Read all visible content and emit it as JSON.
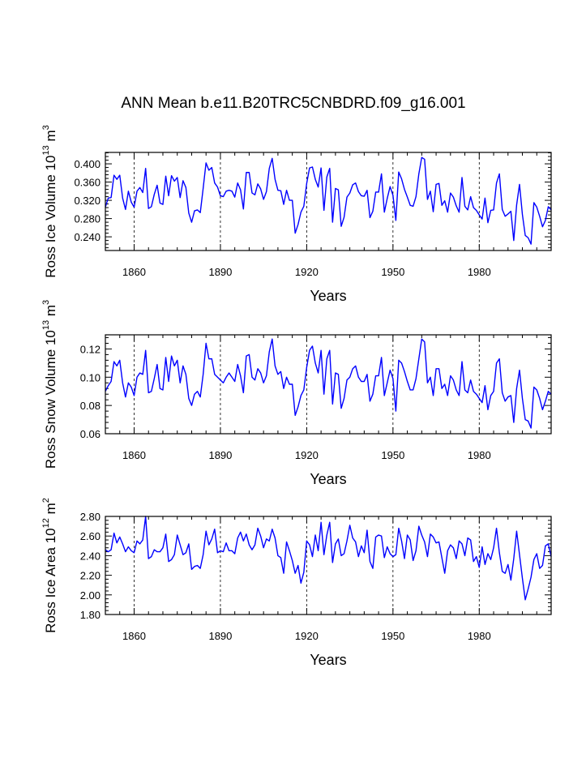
{
  "figure": {
    "title": "ANN Mean b.e11.B20TRC5CNBDRD.f09_g16.001",
    "line_color": "#0000ff",
    "grid_color": "#000000"
  },
  "chart_data": [
    {
      "type": "line",
      "ylabel": {
        "main": "Ross Ice Volume 10",
        "exp": "13",
        "unit": " m",
        "unit_exp": "3"
      },
      "xlabel": "Years",
      "xlim": [
        1850,
        2005
      ],
      "ylim": [
        0.21,
        0.425
      ],
      "x_ticks": [
        1860,
        1890,
        1920,
        1950,
        1980
      ],
      "x_tick_labels": [
        "1860",
        "1890",
        "1920",
        "1950",
        "1980"
      ],
      "y_ticks": [
        0.24,
        0.28,
        0.32,
        0.36,
        0.4
      ],
      "y_tick_labels": [
        "0.240",
        "0.280",
        "0.320",
        "0.360",
        "0.400"
      ],
      "grid": "vertical dashed at x ticks",
      "series": [
        {
          "name": "Ross Ice Volume",
          "x": [
            1850,
            1851,
            1852,
            1853,
            1854,
            1855,
            1856,
            1857,
            1858,
            1859,
            1860,
            1861,
            1862,
            1863,
            1864,
            1865,
            1866,
            1867,
            1868,
            1869,
            1870,
            1871,
            1872,
            1873,
            1874,
            1875,
            1876,
            1877,
            1878,
            1879,
            1880,
            1881,
            1882,
            1883,
            1884,
            1885,
            1886,
            1887,
            1888,
            1889,
            1890,
            1891,
            1892,
            1893,
            1894,
            1895,
            1896,
            1897,
            1898,
            1899,
            1900,
            1901,
            1902,
            1903,
            1904,
            1905,
            1906,
            1907,
            1908,
            1909,
            1910,
            1911,
            1912,
            1913,
            1914,
            1915,
            1916,
            1917,
            1918,
            1919,
            1920,
            1921,
            1922,
            1923,
            1924,
            1925,
            1926,
            1927,
            1928,
            1929,
            1930,
            1931,
            1932,
            1933,
            1934,
            1935,
            1936,
            1937,
            1938,
            1939,
            1940,
            1941,
            1942,
            1943,
            1944,
            1945,
            1946,
            1947,
            1948,
            1949,
            1950,
            1951,
            1952,
            1953,
            1954,
            1955,
            1956,
            1957,
            1958,
            1959,
            1960,
            1961,
            1962,
            1963,
            1964,
            1965,
            1966,
            1967,
            1968,
            1969,
            1970,
            1971,
            1972,
            1973,
            1974,
            1975,
            1976,
            1977,
            1978,
            1979,
            1980,
            1981,
            1982,
            1983,
            1984,
            1985,
            1986,
            1987,
            1988,
            1989,
            1990,
            1991,
            1992,
            1993,
            1994,
            1995,
            1996,
            1997,
            1998,
            1999,
            2000,
            2001,
            2002,
            2003,
            2004,
            2005
          ],
          "values": [
            0.305,
            0.325,
            0.326,
            0.375,
            0.366,
            0.375,
            0.325,
            0.3,
            0.34,
            0.316,
            0.305,
            0.34,
            0.348,
            0.337,
            0.39,
            0.302,
            0.306,
            0.333,
            0.353,
            0.314,
            0.311,
            0.373,
            0.33,
            0.374,
            0.362,
            0.37,
            0.326,
            0.363,
            0.348,
            0.292,
            0.272,
            0.297,
            0.299,
            0.293,
            0.346,
            0.402,
            0.386,
            0.392,
            0.358,
            0.349,
            0.33,
            0.328,
            0.34,
            0.342,
            0.34,
            0.327,
            0.358,
            0.343,
            0.301,
            0.381,
            0.381,
            0.336,
            0.332,
            0.356,
            0.345,
            0.322,
            0.339,
            0.39,
            0.412,
            0.366,
            0.342,
            0.341,
            0.311,
            0.342,
            0.32,
            0.32,
            0.248,
            0.267,
            0.294,
            0.307,
            0.357,
            0.391,
            0.393,
            0.366,
            0.349,
            0.391,
            0.298,
            0.371,
            0.39,
            0.272,
            0.346,
            0.343,
            0.263,
            0.283,
            0.327,
            0.336,
            0.354,
            0.358,
            0.339,
            0.33,
            0.329,
            0.342,
            0.282,
            0.296,
            0.338,
            0.338,
            0.378,
            0.294,
            0.324,
            0.35,
            0.331,
            0.276,
            0.382,
            0.367,
            0.344,
            0.327,
            0.309,
            0.307,
            0.328,
            0.378,
            0.414,
            0.41,
            0.322,
            0.34,
            0.295,
            0.355,
            0.357,
            0.309,
            0.319,
            0.294,
            0.336,
            0.327,
            0.308,
            0.294,
            0.37,
            0.307,
            0.299,
            0.328,
            0.304,
            0.298,
            0.288,
            0.279,
            0.325,
            0.271,
            0.298,
            0.299,
            0.358,
            0.378,
            0.3,
            0.285,
            0.29,
            0.296,
            0.232,
            0.31,
            0.355,
            0.289,
            0.243,
            0.238,
            0.224,
            0.315,
            0.305,
            0.285,
            0.262,
            0.276,
            0.306,
            0.299
          ]
        }
      ]
    },
    {
      "type": "line",
      "ylabel": {
        "main": "Ross Snow Volume 10",
        "exp": "13",
        "unit": " m",
        "unit_exp": "3"
      },
      "xlabel": "Years",
      "xlim": [
        1850,
        2005
      ],
      "ylim": [
        0.06,
        0.13
      ],
      "x_ticks": [
        1860,
        1890,
        1920,
        1950,
        1980
      ],
      "x_tick_labels": [
        "1860",
        "1890",
        "1920",
        "1950",
        "1980"
      ],
      "y_ticks": [
        0.06,
        0.08,
        0.1,
        0.12
      ],
      "y_tick_labels": [
        "0.06",
        "0.08",
        "0.10",
        "0.12"
      ],
      "grid": "vertical dashed at x ticks",
      "series": [
        {
          "name": "Ross Snow Volume",
          "x": [
            1850,
            1851,
            1852,
            1853,
            1854,
            1855,
            1856,
            1857,
            1858,
            1859,
            1860,
            1861,
            1862,
            1863,
            1864,
            1865,
            1866,
            1867,
            1868,
            1869,
            1870,
            1871,
            1872,
            1873,
            1874,
            1875,
            1876,
            1877,
            1878,
            1879,
            1880,
            1881,
            1882,
            1883,
            1884,
            1885,
            1886,
            1887,
            1888,
            1889,
            1890,
            1891,
            1892,
            1893,
            1894,
            1895,
            1896,
            1897,
            1898,
            1899,
            1900,
            1901,
            1902,
            1903,
            1904,
            1905,
            1906,
            1907,
            1908,
            1909,
            1910,
            1911,
            1912,
            1913,
            1914,
            1915,
            1916,
            1917,
            1918,
            1919,
            1920,
            1921,
            1922,
            1923,
            1924,
            1925,
            1926,
            1927,
            1928,
            1929,
            1930,
            1931,
            1932,
            1933,
            1934,
            1935,
            1936,
            1937,
            1938,
            1939,
            1940,
            1941,
            1942,
            1943,
            1944,
            1945,
            1946,
            1947,
            1948,
            1949,
            1950,
            1951,
            1952,
            1953,
            1954,
            1955,
            1956,
            1957,
            1958,
            1959,
            1960,
            1961,
            1962,
            1963,
            1964,
            1965,
            1966,
            1967,
            1968,
            1969,
            1970,
            1971,
            1972,
            1973,
            1974,
            1975,
            1976,
            1977,
            1978,
            1979,
            1980,
            1981,
            1982,
            1983,
            1984,
            1985,
            1986,
            1987,
            1988,
            1989,
            1990,
            1991,
            1992,
            1993,
            1994,
            1995,
            1996,
            1997,
            1998,
            1999,
            2000,
            2001,
            2002,
            2003,
            2004,
            2005
          ],
          "values": [
            0.09,
            0.094,
            0.097,
            0.111,
            0.108,
            0.112,
            0.096,
            0.086,
            0.096,
            0.093,
            0.087,
            0.1,
            0.103,
            0.102,
            0.119,
            0.089,
            0.09,
            0.099,
            0.109,
            0.092,
            0.091,
            0.114,
            0.097,
            0.115,
            0.108,
            0.112,
            0.096,
            0.108,
            0.102,
            0.085,
            0.08,
            0.088,
            0.09,
            0.086,
            0.102,
            0.124,
            0.113,
            0.113,
            0.102,
            0.1,
            0.098,
            0.096,
            0.1,
            0.103,
            0.1,
            0.097,
            0.109,
            0.101,
            0.089,
            0.115,
            0.116,
            0.1,
            0.098,
            0.106,
            0.103,
            0.096,
            0.101,
            0.118,
            0.127,
            0.108,
            0.102,
            0.104,
            0.092,
            0.1,
            0.095,
            0.095,
            0.073,
            0.079,
            0.087,
            0.091,
            0.107,
            0.119,
            0.122,
            0.11,
            0.103,
            0.119,
            0.088,
            0.113,
            0.119,
            0.081,
            0.103,
            0.102,
            0.078,
            0.085,
            0.098,
            0.1,
            0.106,
            0.108,
            0.1,
            0.097,
            0.097,
            0.102,
            0.083,
            0.088,
            0.101,
            0.101,
            0.114,
            0.087,
            0.096,
            0.105,
            0.099,
            0.076,
            0.112,
            0.11,
            0.104,
            0.097,
            0.091,
            0.091,
            0.099,
            0.113,
            0.127,
            0.125,
            0.096,
            0.1,
            0.087,
            0.106,
            0.106,
            0.092,
            0.095,
            0.087,
            0.101,
            0.098,
            0.091,
            0.087,
            0.111,
            0.091,
            0.089,
            0.098,
            0.09,
            0.088,
            0.085,
            0.082,
            0.094,
            0.077,
            0.087,
            0.09,
            0.11,
            0.113,
            0.089,
            0.083,
            0.086,
            0.087,
            0.068,
            0.092,
            0.105,
            0.085,
            0.07,
            0.069,
            0.064,
            0.093,
            0.091,
            0.085,
            0.077,
            0.083,
            0.09,
            0.088
          ]
        }
      ]
    },
    {
      "type": "line",
      "ylabel": {
        "main": "Ross Ice Area 10",
        "exp": "12",
        "unit": " m",
        "unit_exp": "2"
      },
      "xlabel": "Years",
      "xlim": [
        1850,
        2005
      ],
      "ylim": [
        1.8,
        2.8
      ],
      "x_ticks": [
        1860,
        1890,
        1920,
        1950,
        1980
      ],
      "x_tick_labels": [
        "1860",
        "1890",
        "1920",
        "1950",
        "1980"
      ],
      "y_ticks": [
        1.8,
        2.0,
        2.2,
        2.4,
        2.6,
        2.8
      ],
      "y_tick_labels": [
        "1.80",
        "2.00",
        "2.20",
        "2.40",
        "2.60",
        "2.80"
      ],
      "grid": "vertical dashed at x ticks",
      "series": [
        {
          "name": "Ross Ice Area",
          "x": [
            1850,
            1851,
            1852,
            1853,
            1854,
            1855,
            1856,
            1857,
            1858,
            1859,
            1860,
            1861,
            1862,
            1863,
            1864,
            1865,
            1866,
            1867,
            1868,
            1869,
            1870,
            1871,
            1872,
            1873,
            1874,
            1875,
            1876,
            1877,
            1878,
            1879,
            1880,
            1881,
            1882,
            1883,
            1884,
            1885,
            1886,
            1887,
            1888,
            1889,
            1890,
            1891,
            1892,
            1893,
            1894,
            1895,
            1896,
            1897,
            1898,
            1899,
            1900,
            1901,
            1902,
            1903,
            1904,
            1905,
            1906,
            1907,
            1908,
            1909,
            1910,
            1911,
            1912,
            1913,
            1914,
            1915,
            1916,
            1917,
            1918,
            1919,
            1920,
            1921,
            1922,
            1923,
            1924,
            1925,
            1926,
            1927,
            1928,
            1929,
            1930,
            1931,
            1932,
            1933,
            1934,
            1935,
            1936,
            1937,
            1938,
            1939,
            1940,
            1941,
            1942,
            1943,
            1944,
            1945,
            1946,
            1947,
            1948,
            1949,
            1950,
            1951,
            1952,
            1953,
            1954,
            1955,
            1956,
            1957,
            1958,
            1959,
            1960,
            1961,
            1962,
            1963,
            1964,
            1965,
            1966,
            1967,
            1968,
            1969,
            1970,
            1971,
            1972,
            1973,
            1974,
            1975,
            1976,
            1977,
            1978,
            1979,
            1980,
            1981,
            1982,
            1983,
            1984,
            1985,
            1986,
            1987,
            1988,
            1989,
            1990,
            1991,
            1992,
            1993,
            1994,
            1995,
            1996,
            1997,
            1998,
            1999,
            2000,
            2001,
            2002,
            2003,
            2004,
            2005
          ],
          "values": [
            2.46,
            2.44,
            2.46,
            2.63,
            2.53,
            2.59,
            2.52,
            2.44,
            2.49,
            2.45,
            2.43,
            2.55,
            2.52,
            2.56,
            2.8,
            2.37,
            2.39,
            2.46,
            2.44,
            2.44,
            2.48,
            2.62,
            2.34,
            2.36,
            2.41,
            2.61,
            2.51,
            2.41,
            2.43,
            2.52,
            2.26,
            2.29,
            2.3,
            2.27,
            2.41,
            2.65,
            2.51,
            2.57,
            2.67,
            2.43,
            2.45,
            2.44,
            2.53,
            2.45,
            2.45,
            2.42,
            2.58,
            2.64,
            2.55,
            2.62,
            2.51,
            2.46,
            2.51,
            2.68,
            2.6,
            2.48,
            2.57,
            2.55,
            2.67,
            2.58,
            2.4,
            2.38,
            2.22,
            2.54,
            2.45,
            2.35,
            2.22,
            2.3,
            2.12,
            2.23,
            2.55,
            2.51,
            2.39,
            2.61,
            2.45,
            2.74,
            2.41,
            2.61,
            2.74,
            2.33,
            2.52,
            2.57,
            2.4,
            2.42,
            2.55,
            2.71,
            2.58,
            2.54,
            2.39,
            2.5,
            2.43,
            2.66,
            2.34,
            2.27,
            2.59,
            2.61,
            2.6,
            2.38,
            2.49,
            2.42,
            2.39,
            2.41,
            2.68,
            2.55,
            2.37,
            2.61,
            2.56,
            2.35,
            2.45,
            2.7,
            2.61,
            2.54,
            2.39,
            2.62,
            2.59,
            2.53,
            2.54,
            2.38,
            2.22,
            2.45,
            2.51,
            2.48,
            2.37,
            2.55,
            2.52,
            2.4,
            2.58,
            2.56,
            2.34,
            2.39,
            2.28,
            2.49,
            2.31,
            2.42,
            2.36,
            2.48,
            2.68,
            2.43,
            2.24,
            2.22,
            2.31,
            2.15,
            2.37,
            2.65,
            2.41,
            2.17,
            1.95,
            2.06,
            2.18,
            2.36,
            2.42,
            2.27,
            2.3,
            2.5,
            2.52,
            2.39
          ]
        }
      ]
    }
  ]
}
